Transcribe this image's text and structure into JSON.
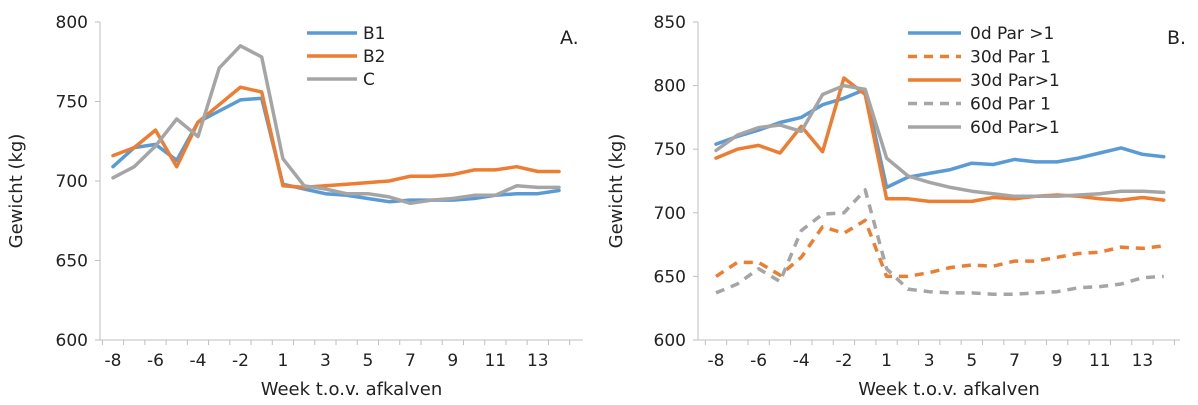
{
  "chart_data": [
    {
      "type": "line",
      "panel_label": "A.",
      "xlabel": "Week t.o.v. afkalven",
      "ylabel": "Gewicht (kg)",
      "ylim": [
        600,
        800
      ],
      "yticks": [
        600,
        650,
        700,
        750,
        800
      ],
      "x": [
        -8,
        -7,
        -6,
        -5,
        -4,
        -3,
        -2,
        -1,
        1,
        2,
        3,
        4,
        5,
        6,
        7,
        8,
        9,
        10,
        11,
        12,
        13,
        14
      ],
      "xtick_labels": [
        "-8",
        "-6",
        "-4",
        "-2",
        "1",
        "3",
        "5",
        "7",
        "9",
        "11",
        "13"
      ],
      "legend_position": "top-center",
      "series": [
        {
          "name": "B1",
          "color": "#5B9BD5",
          "dash": false,
          "values": [
            709,
            721,
            723,
            713,
            737,
            744,
            751,
            752,
            698,
            695,
            692,
            691,
            689,
            687,
            688,
            688,
            688,
            689,
            691,
            692,
            692,
            694
          ]
        },
        {
          "name": "B2",
          "color": "#ED7D31",
          "dash": false,
          "values": [
            716,
            721,
            732,
            709,
            737,
            748,
            759,
            756,
            697,
            696,
            697,
            698,
            699,
            700,
            703,
            703,
            704,
            707,
            707,
            709,
            706,
            706
          ]
        },
        {
          "name": "C",
          "color": "#A5A5A5",
          "dash": false,
          "values": [
            702,
            709,
            722,
            739,
            728,
            771,
            785,
            778,
            714,
            697,
            695,
            692,
            692,
            690,
            686,
            688,
            689,
            691,
            691,
            697,
            696,
            696
          ]
        }
      ]
    },
    {
      "type": "line",
      "panel_label": "B.",
      "xlabel": "Week t.o.v. afkalven",
      "ylabel": "Gewicht (kg)",
      "ylim": [
        600,
        850
      ],
      "yticks": [
        600,
        650,
        700,
        750,
        800,
        850
      ],
      "x": [
        -8,
        -7,
        -6,
        -5,
        -4,
        -3,
        -2,
        -1,
        1,
        2,
        3,
        4,
        5,
        6,
        7,
        8,
        9,
        10,
        11,
        12,
        13,
        14
      ],
      "xtick_labels": [
        "-8",
        "-6",
        "-4",
        "-2",
        "1",
        "3",
        "5",
        "7",
        "9",
        "11",
        "13"
      ],
      "legend_position": "top-right",
      "series": [
        {
          "name": "0d Par >1",
          "color": "#5B9BD5",
          "dash": false,
          "values": [
            754,
            760,
            765,
            771,
            775,
            785,
            790,
            797,
            720,
            728,
            731,
            734,
            739,
            738,
            742,
            740,
            740,
            743,
            747,
            751,
            746,
            744
          ]
        },
        {
          "name": "30d Par 1",
          "color": "#ED7D31",
          "dash": true,
          "values": [
            650,
            661,
            661,
            651,
            665,
            689,
            684,
            694,
            650,
            650,
            653,
            657,
            659,
            658,
            662,
            662,
            665,
            668,
            669,
            673,
            672,
            674
          ]
        },
        {
          "name": "30d Par>1",
          "color": "#ED7D31",
          "dash": false,
          "values": [
            743,
            750,
            753,
            747,
            768,
            748,
            806,
            793,
            711,
            711,
            709,
            709,
            709,
            712,
            711,
            713,
            714,
            713,
            711,
            710,
            712,
            710
          ]
        },
        {
          "name": "60d Par 1",
          "color": "#A5A5A5",
          "dash": true,
          "values": [
            637,
            644,
            656,
            646,
            686,
            699,
            700,
            718,
            656,
            640,
            638,
            637,
            637,
            636,
            636,
            637,
            638,
            641,
            642,
            644,
            649,
            650
          ]
        },
        {
          "name": "60d Par>1",
          "color": "#A5A5A5",
          "dash": false,
          "values": [
            749,
            761,
            767,
            769,
            764,
            793,
            800,
            797,
            743,
            729,
            724,
            720,
            717,
            715,
            713,
            713,
            713,
            714,
            715,
            717,
            717,
            716
          ]
        }
      ]
    }
  ]
}
